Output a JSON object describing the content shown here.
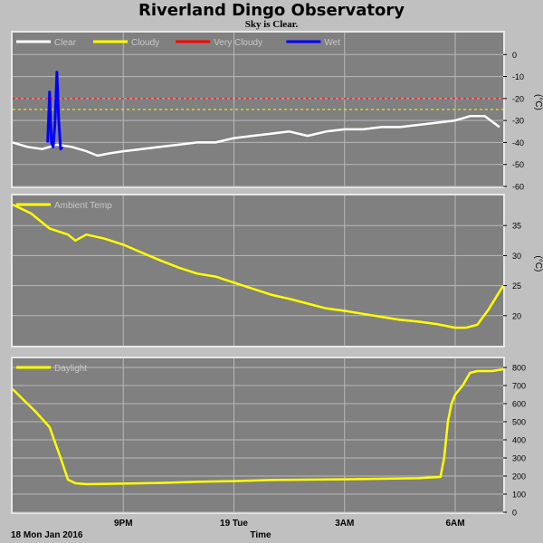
{
  "header": {
    "title": "Riverland Dingo Observatory",
    "subtitle": "Sky is Clear."
  },
  "footer": {
    "date_label": "18 Mon Jan 2016",
    "time_label": "Time"
  },
  "colors": {
    "background": "#c0c0c0",
    "plot_bg": "#808080",
    "grid": "#b8b8b8",
    "clear": "#ffffff",
    "cloudy": "#ffff00",
    "very_cloudy": "#ff0000",
    "wet": "#0000ff",
    "ambient": "#ffff00",
    "daylight": "#ffff00"
  },
  "chart_data": [
    {
      "type": "line",
      "name": "sky",
      "unit_label": "(°C)",
      "ylim": [
        -60,
        10
      ],
      "yticks": [
        0,
        -10,
        -20,
        -30,
        -40,
        -50,
        -60
      ],
      "xlim": [
        18.0,
        31.3
      ],
      "xticks": [
        {
          "x": 21,
          "label": "9PM"
        },
        {
          "x": 24,
          "label": "19 Tue"
        },
        {
          "x": 27,
          "label": "3AM"
        },
        {
          "x": 30,
          "label": "6AM"
        }
      ],
      "legend": [
        "Clear",
        "Cloudy",
        "Very Cloudy",
        "Wet"
      ],
      "thresholds": [
        {
          "name": "Very Cloudy",
          "value": -20
        },
        {
          "name": "Cloudy",
          "value": -25
        }
      ],
      "series": [
        {
          "name": "Clear",
          "role": "clear",
          "x": [
            18.0,
            18.4,
            18.8,
            19.2,
            19.6,
            20.0,
            20.3,
            20.6,
            21.0,
            21.5,
            22.0,
            22.5,
            23.0,
            23.5,
            24.0,
            24.5,
            25.0,
            25.5,
            26.0,
            26.5,
            27.0,
            27.5,
            28.0,
            28.5,
            29.0,
            29.5,
            30.0,
            30.4,
            30.8,
            31.2
          ],
          "y": [
            -40,
            -42,
            -43,
            -41,
            -42,
            -44,
            -46,
            -45,
            -44,
            -43,
            -42,
            -41,
            -40,
            -40,
            -38,
            -37,
            -36,
            -35,
            -37,
            -35,
            -34,
            -34,
            -33,
            -33,
            -32,
            -31,
            -30,
            -28,
            -28,
            -33
          ]
        },
        {
          "name": "Wet",
          "role": "wet",
          "x": [
            18.95,
            19.0,
            19.05,
            19.1,
            19.15,
            19.2,
            19.25,
            19.3,
            19.35
          ],
          "y": [
            -40,
            -17,
            -40,
            -42,
            -30,
            -8,
            -30,
            -43,
            -42
          ]
        }
      ]
    },
    {
      "type": "line",
      "name": "ambient",
      "unit_label": "(°C)",
      "ylim": [
        15,
        40
      ],
      "yticks": [
        35,
        30,
        25,
        20
      ],
      "xlim": [
        18.0,
        31.3
      ],
      "xticks": [
        {
          "x": 21,
          "label": "9PM"
        },
        {
          "x": 24,
          "label": "19 Tue"
        },
        {
          "x": 27,
          "label": "3AM"
        },
        {
          "x": 30,
          "label": "6AM"
        }
      ],
      "legend": [
        "Ambient Temp"
      ],
      "series": [
        {
          "name": "Ambient Temp",
          "x": [
            18.0,
            18.5,
            19.0,
            19.5,
            19.7,
            20.0,
            20.5,
            21.0,
            21.5,
            22.0,
            22.5,
            23.0,
            23.5,
            24.0,
            24.5,
            25.0,
            25.5,
            26.0,
            26.5,
            27.0,
            27.5,
            28.0,
            28.5,
            29.0,
            29.5,
            30.0,
            30.3,
            30.6,
            30.9,
            31.3
          ],
          "y": [
            38.5,
            37,
            34.5,
            33.5,
            32.5,
            33.5,
            32.8,
            31.8,
            30.5,
            29.2,
            28,
            27,
            26.5,
            25.5,
            24.5,
            23.5,
            22.8,
            22,
            21.2,
            20.8,
            20.3,
            19.8,
            19.3,
            19,
            18.6,
            18,
            18,
            18.5,
            21,
            25
          ]
        }
      ]
    },
    {
      "type": "line",
      "name": "daylight",
      "unit_label": "",
      "ylim": [
        0,
        850
      ],
      "yticks": [
        800,
        700,
        600,
        500,
        400,
        300,
        200,
        100,
        0
      ],
      "xlim": [
        18.0,
        31.3
      ],
      "xticks": [
        {
          "x": 21,
          "label": "9PM"
        },
        {
          "x": 24,
          "label": "19 Tue"
        },
        {
          "x": 27,
          "label": "3AM"
        },
        {
          "x": 30,
          "label": "6AM"
        }
      ],
      "legend": [
        "Daylight"
      ],
      "series": [
        {
          "name": "Daylight",
          "x": [
            18.0,
            18.3,
            18.6,
            19.0,
            19.3,
            19.5,
            19.7,
            20.0,
            21.0,
            22.0,
            23.0,
            24.0,
            25.0,
            26.0,
            27.0,
            28.0,
            29.0,
            29.6,
            29.7,
            29.8,
            29.9,
            30.0,
            30.2,
            30.4,
            30.6,
            31.0,
            31.3
          ],
          "y": [
            680,
            620,
            560,
            470,
            300,
            180,
            160,
            155,
            158,
            162,
            168,
            172,
            178,
            180,
            182,
            185,
            188,
            195,
            300,
            500,
            600,
            650,
            700,
            770,
            780,
            780,
            790
          ]
        }
      ]
    }
  ]
}
